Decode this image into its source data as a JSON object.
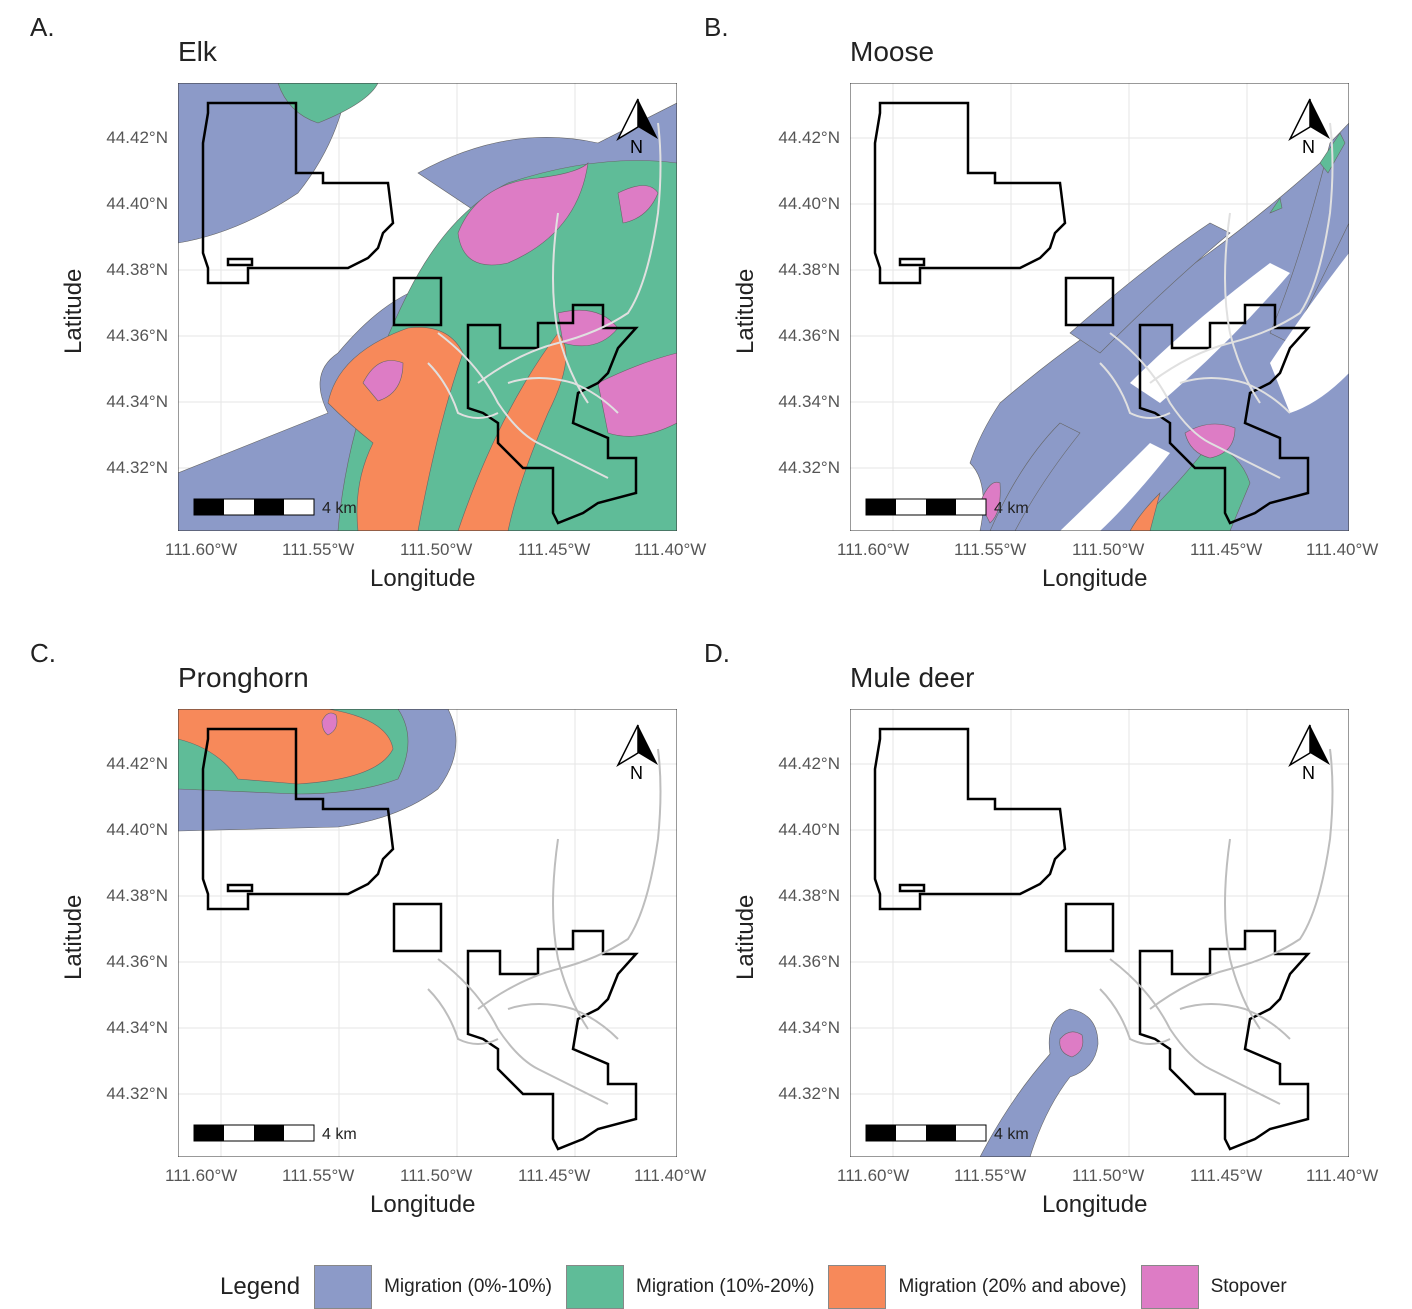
{
  "legend": {
    "title": "Legend",
    "items": [
      {
        "label": "Migration (0%-10%)",
        "color": "#8c9ac8"
      },
      {
        "label": "Migration (10%-20%)",
        "color": "#5fbc98"
      },
      {
        "label": "Migration (20% and above)",
        "color": "#f7895a"
      },
      {
        "label": "Stopover",
        "color": "#dd7cc5"
      }
    ]
  },
  "axes": {
    "xlabel": "Longitude",
    "ylabel": "Latitude",
    "xticks": [
      "111.60°W",
      "111.55°W",
      "111.50°W",
      "111.45°W",
      "111.40°W"
    ],
    "yticks": [
      "44.42°N",
      "44.40°N",
      "44.38°N",
      "44.36°N",
      "44.34°N",
      "44.32°N"
    ]
  },
  "scalebar": {
    "label": "4 km"
  },
  "north_arrow": {
    "label": "N"
  },
  "panels": [
    {
      "letter": "A.",
      "title": "Elk"
    },
    {
      "letter": "B.",
      "title": "Moose"
    },
    {
      "letter": "C.",
      "title": "Pronghorn"
    },
    {
      "letter": "D.",
      "title": "Mule deer"
    }
  ],
  "colors": {
    "migration_low": "#8c9ac8",
    "migration_mid": "#5fbc98",
    "migration_high": "#f7895a",
    "stopover": "#dd7cc5",
    "boundary": "#000000",
    "roads": "#d9d9d9"
  }
}
